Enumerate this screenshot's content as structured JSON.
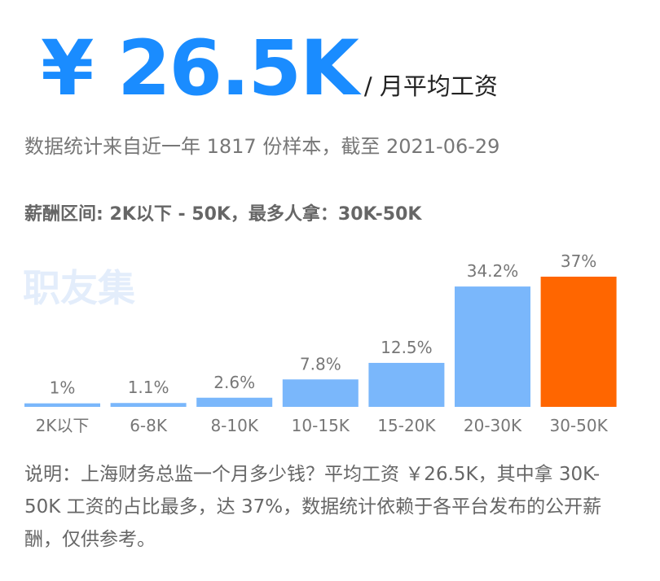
{
  "header": {
    "value": "¥ 26.5K",
    "unit": "/ 月平均工资",
    "subtitle": "数据统计来自近一年 1817 份样本，截至 2021-06-29",
    "range": "薪酬区间: 2K以下 - 50K，最多人拿：30K-50K"
  },
  "watermark": "职友集",
  "colors": {
    "accent": "#1a8cff",
    "bar": "#7ab7fb",
    "highlight": "#ff6600"
  },
  "chart_data": {
    "type": "bar",
    "categories": [
      "2K以下",
      "6-8K",
      "8-10K",
      "10-15K",
      "15-20K",
      "20-30K",
      "30-50K"
    ],
    "values": [
      1,
      1.1,
      2.6,
      7.8,
      12.5,
      34.2,
      37
    ],
    "value_labels": [
      "1%",
      "1.1%",
      "2.6%",
      "7.8%",
      "12.5%",
      "34.2%",
      "37%"
    ],
    "highlight_index": 6,
    "ylim": [
      0,
      37
    ],
    "title": "",
    "xlabel": "",
    "ylabel": ""
  },
  "note": "说明：上海财务总监一个月多少钱？平均工资 ￥26.5K，其中拿 30K-50K 工资的占比最多，达 37%，数据统计依赖于各平台发布的公开薪酬，仅供参考。"
}
